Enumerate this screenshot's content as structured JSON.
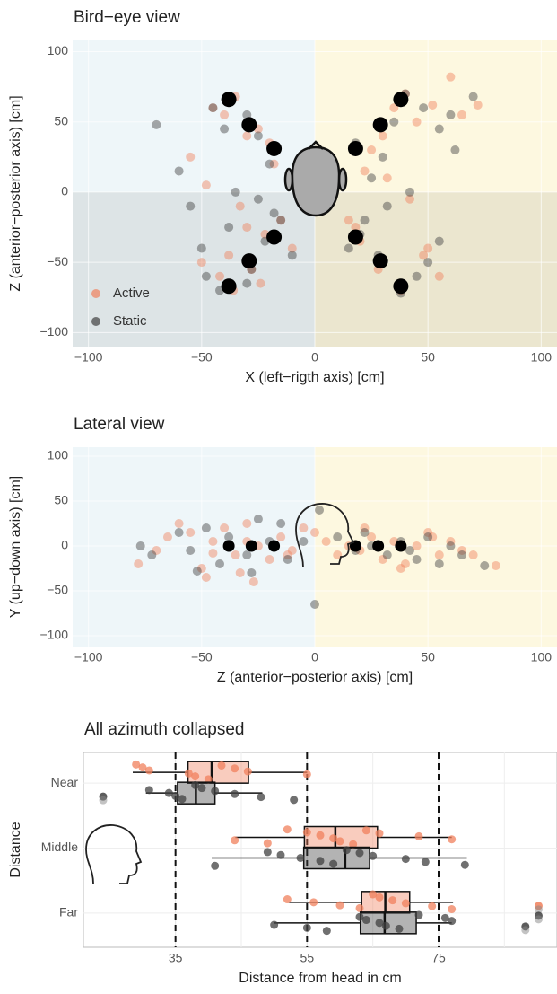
{
  "chart_data": [
    {
      "type": "scatter",
      "title": "Bird−eye view",
      "x_label": "X (left−rigth axis) [cm]",
      "y_label": "Z (anterior−posterior axis) [cm]",
      "xlim": [
        -107,
        107
      ],
      "ylim": [
        -110,
        108
      ],
      "xticks": [
        {
          "value": -100,
          "label": "−100"
        },
        {
          "value": -50,
          "label": "−50"
        },
        0,
        50,
        100
      ],
      "yticks": [
        {
          "value": -100,
          "label": "−100"
        },
        {
          "value": -50,
          "label": "−50"
        },
        0,
        50,
        100
      ],
      "legend": "bottom-left",
      "series": [
        {
          "name": "Active",
          "color": "#f0805c",
          "x": [
            -45,
            -40,
            -35,
            -30,
            -55,
            -48,
            -25,
            -20,
            -33,
            -38,
            -28,
            -22,
            -15,
            -10,
            -42,
            -36,
            -24,
            -50,
            -30,
            -18,
            40,
            35,
            45,
            52,
            60,
            30,
            25,
            22,
            18,
            48,
            55,
            38,
            28,
            20,
            15,
            42,
            32,
            50,
            65,
            72
          ],
          "y": [
            60,
            55,
            68,
            40,
            25,
            5,
            45,
            35,
            -10,
            -45,
            -55,
            -30,
            -20,
            -40,
            -60,
            -70,
            -65,
            -50,
            -25,
            20,
            70,
            60,
            50,
            62,
            82,
            40,
            30,
            15,
            -25,
            -45,
            -60,
            -70,
            -55,
            -35,
            -20,
            -5,
            10,
            -40,
            55,
            62
          ]
        },
        {
          "name": "Static",
          "color": "#404040",
          "x": [
            -70,
            -60,
            -45,
            -40,
            -30,
            -25,
            -20,
            -35,
            -50,
            -48,
            -42,
            -28,
            -22,
            -18,
            -10,
            -55,
            -38,
            -30,
            -25,
            -15,
            70,
            60,
            55,
            48,
            40,
            35,
            30,
            25,
            20,
            45,
            50,
            38,
            28,
            22,
            15,
            42,
            32,
            55,
            62,
            18
          ],
          "y": [
            48,
            15,
            60,
            45,
            55,
            40,
            20,
            0,
            -40,
            -60,
            -70,
            -55,
            -35,
            -15,
            -45,
            -10,
            -25,
            -65,
            -5,
            -20,
            68,
            55,
            45,
            60,
            70,
            50,
            25,
            10,
            -30,
            -60,
            -50,
            -72,
            -45,
            -20,
            -40,
            0,
            -10,
            -35,
            30,
            35
          ]
        }
      ],
      "speakers": {
        "color": "#000000",
        "x": [
          -38,
          -29,
          -18,
          -18,
          -29,
          -38,
          38,
          29,
          18,
          18,
          29,
          38
        ],
        "y": [
          66,
          48,
          31,
          -32,
          -49,
          -67,
          66,
          48,
          31,
          -32,
          -49,
          -67
        ]
      }
    },
    {
      "type": "scatter",
      "title": "Lateral view",
      "x_label": "Z (anterior−posterior axis) [cm]",
      "y_label": "Y (up−down axis) [cm]",
      "xlim": [
        -107,
        107
      ],
      "ylim": [
        -112,
        110
      ],
      "xticks": [
        {
          "value": -100,
          "label": "−100"
        },
        {
          "value": -50,
          "label": "−50"
        },
        0,
        50,
        100
      ],
      "yticks": [
        {
          "value": -100,
          "label": "−100"
        },
        {
          "value": -50,
          "label": "−50"
        },
        0,
        50,
        100
      ],
      "series": [
        {
          "color": "#f0805c",
          "x": [
            -78,
            -70,
            -65,
            -55,
            -50,
            -45,
            -40,
            -35,
            -30,
            -25,
            -20,
            -15,
            -10,
            -5,
            0,
            5,
            10,
            15,
            20,
            25,
            30,
            35,
            40,
            45,
            50,
            55,
            60,
            65,
            70,
            80,
            -48,
            -33,
            -27,
            -12,
            22,
            38,
            52,
            -60,
            -45,
            -30
          ],
          "y": [
            -20,
            -5,
            10,
            15,
            -25,
            5,
            20,
            -10,
            25,
            0,
            -15,
            10,
            -5,
            20,
            15,
            5,
            -10,
            0,
            -5,
            10,
            -15,
            5,
            -20,
            0,
            15,
            -10,
            5,
            -5,
            -10,
            -22,
            -35,
            -30,
            -40,
            -10,
            20,
            -25,
            10,
            25,
            -8,
            5
          ]
        },
        {
          "color": "#404040",
          "x": [
            -77,
            -72,
            -60,
            -55,
            -48,
            -42,
            -38,
            -30,
            -25,
            -20,
            -12,
            -5,
            0,
            10,
            18,
            25,
            32,
            38,
            45,
            50,
            55,
            60,
            65,
            75,
            -52,
            -28,
            -15,
            2,
            22,
            42
          ],
          "y": [
            0,
            -10,
            15,
            -5,
            20,
            -20,
            10,
            -10,
            30,
            5,
            -15,
            5,
            -65,
            10,
            -5,
            0,
            -10,
            5,
            -15,
            10,
            -20,
            0,
            -10,
            -22,
            -28,
            -30,
            25,
            40,
            15,
            -5
          ]
        }
      ],
      "speakers": {
        "color": "#000000",
        "x": [
          -38,
          -28,
          -18,
          18,
          28,
          38
        ],
        "y": [
          0,
          0,
          0,
          0,
          0,
          0
        ]
      }
    },
    {
      "type": "box",
      "title": "All azimuth collapsed",
      "x_label": "Distance from head in cm",
      "y_label": "Distance",
      "xlim": [
        21,
        93
      ],
      "xticks": [
        35,
        55,
        75
      ],
      "minor_xticks": [
        45,
        65,
        85
      ],
      "reference_lines": [
        35,
        55,
        75
      ],
      "categories": [
        "Near",
        "Middle",
        "Far"
      ],
      "series": [
        {
          "color": "#f0805c",
          "boxes": [
            {
              "whislo": 28.5,
              "q1": 36.9,
              "med": 40.5,
              "q3": 46.1,
              "whishi": 55,
              "outliers": [],
              "points": [
                29,
                30,
                31,
                37,
                38,
                40,
                42,
                44,
                46,
                55
              ]
            },
            {
              "whislo": 44.1,
              "q1": 54.6,
              "med": 59.3,
              "q3": 65.7,
              "whishi": 77,
              "outliers": [],
              "points": [
                44,
                49,
                52,
                55,
                57,
                59,
                60,
                62,
                64,
                66,
                72,
                77
              ]
            },
            {
              "whislo": 52.2,
              "q1": 63.3,
              "med": 66.9,
              "q3": 70.6,
              "whishi": 77.2,
              "outliers": [
                90.2
              ],
              "points": [
                52,
                56,
                60,
                63,
                65,
                66,
                68,
                70,
                74,
                77
              ]
            }
          ]
        },
        {
          "color": "#404040",
          "boxes": [
            {
              "whislo": 30.5,
              "q1": 35.3,
              "med": 38.1,
              "q3": 41,
              "whishi": 48.2,
              "outliers": [
                24
              ],
              "points": [
                31,
                34,
                35,
                36,
                38,
                39,
                41,
                44,
                48,
                53
              ]
            },
            {
              "whislo": 40.5,
              "q1": 54.5,
              "med": 60.8,
              "q3": 64.5,
              "whishi": 79.3,
              "outliers": [],
              "points": [
                41,
                49,
                51,
                54,
                57,
                59,
                61,
                63,
                65,
                70,
                73,
                79
              ]
            },
            {
              "whislo": 50,
              "q1": 63.1,
              "med": 66.8,
              "q3": 71.6,
              "whishi": 77,
              "outliers": [
                88.2,
                90.2
              ],
              "points": [
                50,
                55,
                58,
                63,
                64,
                66,
                67,
                69,
                72,
                76,
                77
              ]
            }
          ]
        }
      ]
    }
  ]
}
